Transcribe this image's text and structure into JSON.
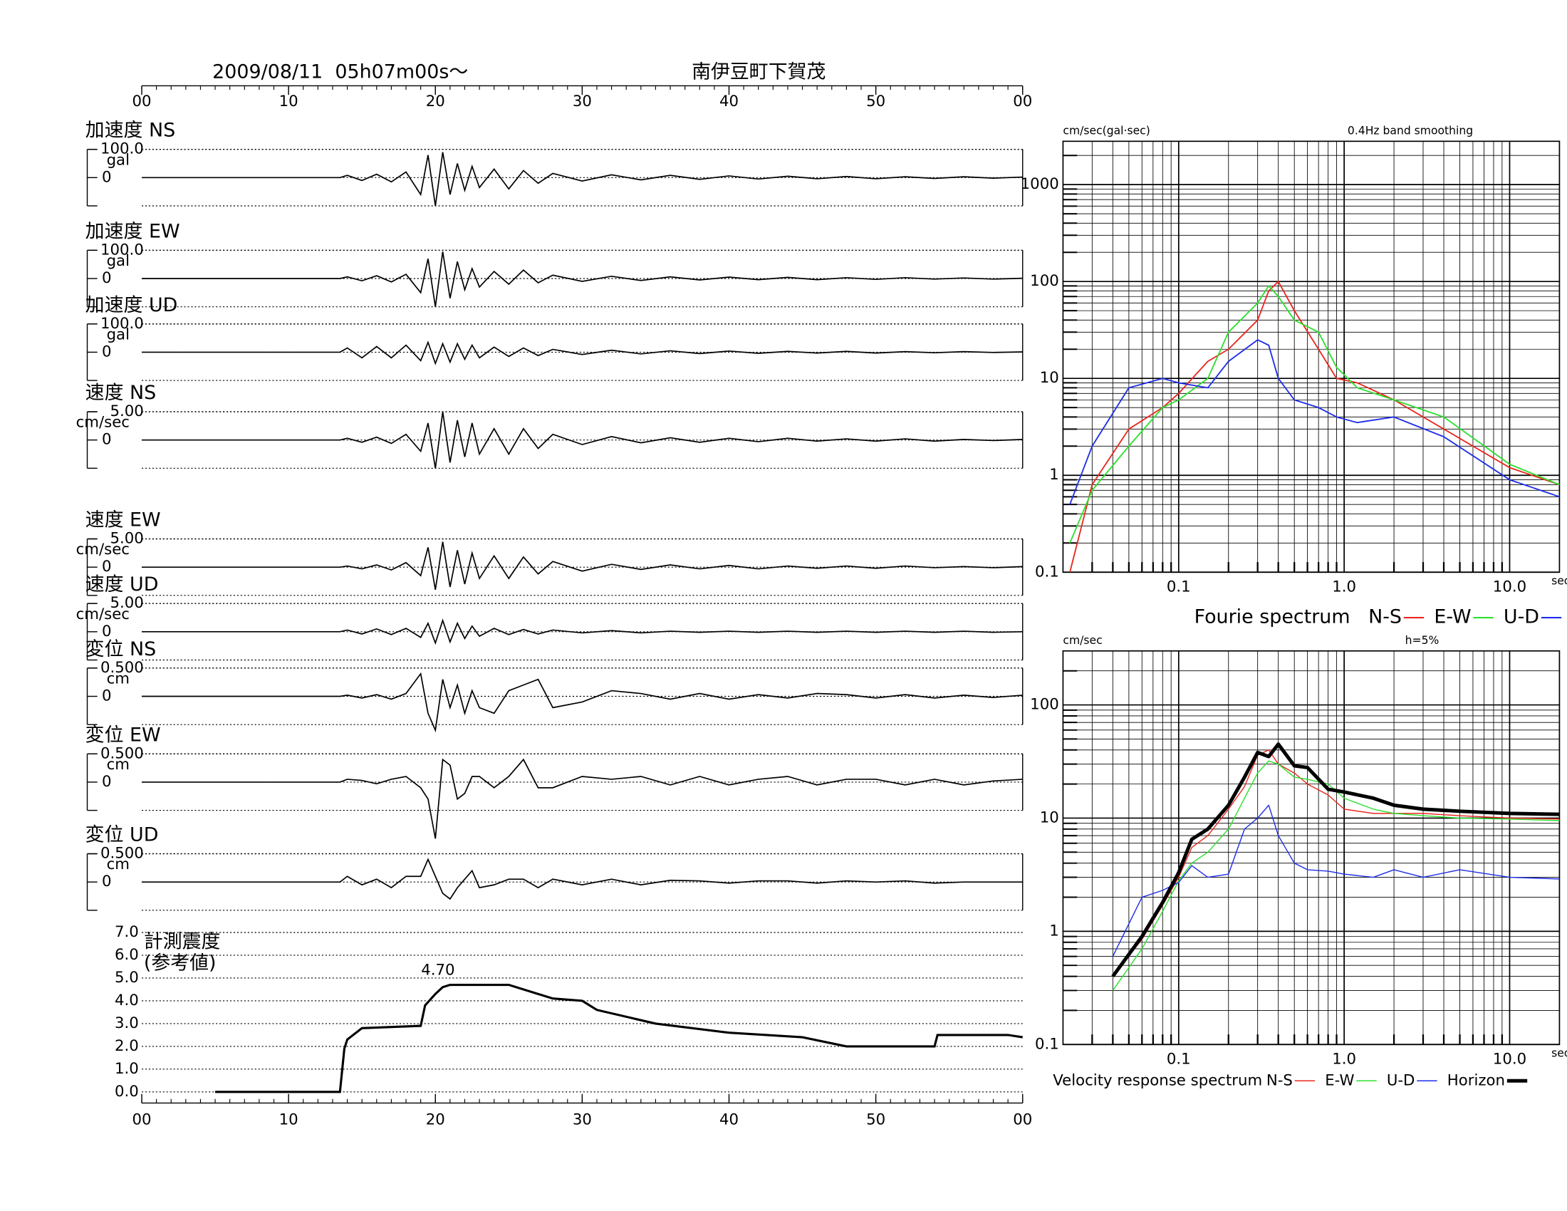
{
  "chart_data": [
    {
      "type": "seismogram",
      "title": "2009/08/11  05h07m00s〜",
      "subtitle": "南伊豆町下賀茂",
      "xlim": [
        0,
        60
      ],
      "xticks": [
        {
          "value": 0,
          "label": "00"
        },
        10,
        20,
        30,
        40,
        50,
        {
          "value": 60,
          "label": "00"
        }
      ],
      "x": [
        0,
        13.5,
        14,
        15,
        16,
        17,
        18,
        19,
        19.5,
        20,
        20.5,
        21,
        21.5,
        22,
        22.5,
        23,
        24,
        25,
        26,
        27,
        28,
        30,
        32,
        34,
        36,
        38,
        40,
        42,
        44,
        46,
        48,
        50,
        52,
        54,
        56,
        58,
        60
      ],
      "series": [
        {
          "name": "加速度 NS",
          "unit": "gal",
          "color": "#000000",
          "ylim": [
            -100,
            100
          ],
          "yticks": [
            {
              "value": 100,
              "label": "100.0"
            },
            0
          ],
          "values": [
            0,
            0,
            8,
            -10,
            12,
            -15,
            20,
            -60,
            80,
            -100,
            90,
            -60,
            50,
            -45,
            40,
            -35,
            30,
            -40,
            25,
            -20,
            15,
            -12,
            10,
            -8,
            8,
            -6,
            6,
            -5,
            5,
            -4,
            4,
            -4,
            3,
            -3,
            3,
            -2,
            2
          ]
        },
        {
          "name": "加速度 EW",
          "unit": "gal",
          "color": "#000000",
          "ylim": [
            -100,
            100
          ],
          "yticks": [
            {
              "value": 100,
              "label": "100.0"
            },
            0
          ],
          "values": [
            0,
            0,
            6,
            -8,
            10,
            -12,
            15,
            -50,
            70,
            -100,
            95,
            -70,
            60,
            -40,
            35,
            -30,
            25,
            -20,
            30,
            -15,
            12,
            -10,
            8,
            -7,
            6,
            -5,
            5,
            -4,
            4,
            -4,
            3,
            -3,
            3,
            -2,
            2,
            -2,
            1
          ]
        },
        {
          "name": "加速度 UD",
          "unit": "gal",
          "color": "#000000",
          "ylim": [
            -100,
            100
          ],
          "yticks": [
            {
              "value": 100,
              "label": "100.0"
            },
            0
          ],
          "values": [
            0,
            0,
            15,
            -20,
            20,
            -20,
            25,
            -30,
            35,
            -40,
            30,
            -35,
            30,
            -25,
            25,
            -20,
            18,
            -15,
            15,
            -12,
            10,
            -8,
            7,
            -6,
            5,
            -5,
            4,
            -4,
            3,
            -3,
            3,
            -3,
            2,
            -2,
            2,
            -1,
            1
          ]
        },
        {
          "name": "速度 NS",
          "unit": "cm/sec",
          "color": "#000000",
          "ylim": [
            -5,
            5
          ],
          "yticks": [
            {
              "value": 5,
              "label": "5.00"
            },
            0
          ],
          "values": [
            0,
            0,
            0.3,
            -0.4,
            0.5,
            -0.6,
            1,
            -2,
            3,
            -5,
            5,
            -4,
            3.5,
            -3,
            3,
            -2.5,
            2,
            -2.5,
            2,
            -1.5,
            1,
            -0.8,
            0.6,
            -0.5,
            0.4,
            -0.4,
            0.3,
            -0.3,
            0.3,
            -0.2,
            0.2,
            -0.2,
            0.2,
            -0.2,
            0.1,
            -0.1,
            0.1
          ]
        },
        {
          "name": "速度 EW",
          "unit": "cm/sec",
          "color": "#000000",
          "ylim": [
            -5,
            5
          ],
          "yticks": [
            {
              "value": 5,
              "label": "5.00"
            },
            0
          ],
          "values": [
            0,
            0,
            0.2,
            -0.3,
            0.4,
            -0.5,
            0.8,
            -1.5,
            3.5,
            -4,
            4.5,
            -3.5,
            3,
            -3,
            2.5,
            -2,
            2,
            -2,
            1.8,
            -1.2,
            1,
            -0.7,
            0.5,
            -0.4,
            0.4,
            -0.3,
            0.3,
            -0.3,
            0.2,
            -0.2,
            0.2,
            -0.2,
            0.2,
            -0.1,
            0.1,
            -0.1,
            0.1
          ]
        },
        {
          "name": "速度 UD",
          "unit": "cm/sec",
          "color": "#000000",
          "ylim": [
            -5,
            5
          ],
          "yticks": [
            {
              "value": 5,
              "label": "5.00"
            },
            0
          ],
          "values": [
            0,
            0,
            0.3,
            -0.4,
            0.5,
            -0.5,
            0.6,
            -1,
            1.5,
            -2,
            2,
            -1.8,
            1.5,
            -1.2,
            1,
            -0.8,
            0.6,
            -0.5,
            0.4,
            -0.4,
            0.3,
            -0.2,
            0.2,
            -0.2,
            0.1,
            -0.1,
            0.1,
            -0.1,
            0.1,
            -0.1,
            0.1,
            -0.1,
            0.1,
            -0.1,
            0.1,
            -0.1,
            0
          ]
        },
        {
          "name": "変位 NS",
          "unit": "cm",
          "color": "#000000",
          "ylim": [
            -0.5,
            0.5
          ],
          "yticks": [
            {
              "value": 0.5,
              "label": "0.500"
            },
            0
          ],
          "values": [
            0,
            0,
            0.02,
            -0.03,
            0.03,
            -0.05,
            0.05,
            0.4,
            -0.3,
            -0.6,
            0.3,
            -0.2,
            0.2,
            -0.3,
            0.1,
            -0.2,
            -0.3,
            0.1,
            0.2,
            0.3,
            -0.2,
            -0.1,
            0.1,
            0.05,
            -0.05,
            0.05,
            -0.05,
            0.03,
            -0.03,
            0.05,
            0.03,
            -0.03,
            0.03,
            -0.03,
            0.02,
            -0.02,
            0.02
          ]
        },
        {
          "name": "変位 EW",
          "unit": "cm",
          "color": "#000000",
          "ylim": [
            -0.5,
            0.5
          ],
          "yticks": [
            {
              "value": 0.5,
              "label": "0.500"
            },
            0
          ],
          "values": [
            0,
            0,
            0.05,
            0.03,
            -0.03,
            0.05,
            0.1,
            -0.1,
            -0.3,
            -1,
            0.4,
            0.3,
            -0.3,
            -0.2,
            0.1,
            0.1,
            -0.1,
            0.1,
            0.4,
            -0.1,
            -0.1,
            0.1,
            0.05,
            0.1,
            -0.05,
            0.1,
            -0.05,
            0.05,
            0.1,
            -0.05,
            0.05,
            0.05,
            -0.05,
            0.05,
            -0.05,
            0.02,
            0.05
          ]
        },
        {
          "name": "変位 UD",
          "unit": "cm",
          "color": "#000000",
          "ylim": [
            -0.5,
            0.5
          ],
          "yticks": [
            {
              "value": 0.5,
              "label": "0.500"
            },
            0
          ],
          "values": [
            0,
            0,
            0.1,
            -0.05,
            0.05,
            -0.1,
            0.1,
            0.1,
            0.4,
            0.1,
            -0.2,
            -0.3,
            -0.1,
            0.05,
            0.2,
            -0.1,
            -0.05,
            0.05,
            0.05,
            -0.1,
            0.05,
            -0.05,
            0.05,
            -0.05,
            0.03,
            0.02,
            -0.02,
            0.02,
            0.02,
            -0.02,
            0.02,
            0,
            0.02,
            -0.02,
            0,
            0,
            0
          ]
        }
      ]
    },
    {
      "type": "line",
      "title": "計測震度",
      "subtitle": "(参考値)",
      "color": "#000000",
      "xlim": [
        0,
        60
      ],
      "xticks": [
        {
          "value": 0,
          "label": "00"
        },
        10,
        20,
        30,
        40,
        50,
        {
          "value": 60,
          "label": "00"
        }
      ],
      "ylim": [
        0,
        7
      ],
      "yticks": [
        {
          "value": 0,
          "label": "0.0"
        },
        {
          "value": 1,
          "label": "1.0"
        },
        {
          "value": 2,
          "label": "2.0"
        },
        {
          "value": 3,
          "label": "3.0"
        },
        {
          "value": 4,
          "label": "4.0"
        },
        {
          "value": 5,
          "label": "5.0"
        },
        {
          "value": 6,
          "label": "6.0"
        },
        {
          "value": 7,
          "label": "7.0"
        }
      ],
      "grid": true,
      "x": [
        5,
        13.5,
        13.8,
        14,
        15,
        19,
        19.3,
        20,
        20.5,
        21,
        25,
        27,
        28,
        30,
        31,
        35,
        40,
        45,
        48,
        50,
        54,
        54.2,
        59,
        60
      ],
      "values": [
        0,
        0,
        1.9,
        2.3,
        2.8,
        2.9,
        3.8,
        4.3,
        4.6,
        4.7,
        4.7,
        4.3,
        4.1,
        4,
        3.6,
        3,
        2.6,
        2.4,
        2,
        2,
        2,
        2.5,
        2.5,
        2.4
      ],
      "annotation": {
        "x": 21,
        "value": 4.7,
        "label": "4.70"
      }
    },
    {
      "type": "spectrum",
      "title": "Fourie spectrum",
      "ylabel": "cm/sec(gal·sec)",
      "note": "0.4Hz band smoothing",
      "xlabel": "sec",
      "log_x": true,
      "log_y": true,
      "grid": true,
      "xlim": [
        0.02,
        20
      ],
      "xticks": [
        0.1,
        {
          "value": 1,
          "label": "1.0"
        },
        {
          "value": 10,
          "label": "10.0"
        }
      ],
      "ylim": [
        0.1,
        2800
      ],
      "yticks": [
        0.1,
        1,
        10,
        100,
        1000
      ],
      "x": [
        0.022,
        0.03,
        0.05,
        0.08,
        0.1,
        0.15,
        0.2,
        0.3,
        0.35,
        0.4,
        0.5,
        0.7,
        0.9,
        1.2,
        2,
        4,
        10,
        20
      ],
      "series": [
        {
          "name": "N-S",
          "color": "#e8281e",
          "values": [
            0.1,
            0.8,
            3,
            5,
            7,
            15,
            20,
            40,
            80,
            100,
            50,
            20,
            10,
            9,
            6,
            3,
            1.2,
            0.8
          ]
        },
        {
          "name": "E-W",
          "color": "#2ee02e",
          "values": [
            0.2,
            0.7,
            2,
            5,
            6,
            10,
            30,
            60,
            90,
            70,
            40,
            30,
            13,
            8,
            6,
            4,
            1.3,
            0.8
          ]
        },
        {
          "name": "U-D",
          "color": "#1e2ee8",
          "values": [
            0.5,
            2,
            8,
            10,
            9,
            8,
            15,
            25,
            22,
            10,
            6,
            5,
            4,
            3.5,
            4,
            2.5,
            0.9,
            0.6
          ]
        }
      ]
    },
    {
      "type": "spectrum",
      "title": "Velocity response spectrum",
      "ylabel": "cm/sec",
      "note": "h=5%",
      "xlabel": "sec",
      "log_x": true,
      "log_y": true,
      "grid": true,
      "xlim": [
        0.02,
        20
      ],
      "xticks": [
        0.1,
        {
          "value": 1,
          "label": "1.0"
        },
        {
          "value": 10,
          "label": "10.0"
        }
      ],
      "ylim": [
        0.1,
        300
      ],
      "yticks": [
        0.1,
        1,
        10,
        100
      ],
      "x": [
        0.04,
        0.06,
        0.08,
        0.1,
        0.12,
        0.15,
        0.2,
        0.25,
        0.3,
        0.35,
        0.4,
        0.5,
        0.6,
        0.8,
        1,
        1.5,
        2,
        3,
        5,
        10,
        20
      ],
      "series": [
        {
          "name": "N-S",
          "color": "#e8281e",
          "line_width": 1,
          "values": [
            0.4,
            0.85,
            1.7,
            3,
            5.5,
            7,
            12,
            19,
            36,
            40,
            30,
            25,
            20,
            16,
            12,
            11,
            11,
            11,
            10.5,
            10,
            9.8
          ]
        },
        {
          "name": "E-W",
          "color": "#2ee02e",
          "line_width": 1,
          "values": [
            0.3,
            0.7,
            1.5,
            2.8,
            4,
            5,
            8,
            15,
            25,
            32,
            30,
            23,
            22,
            20,
            15,
            12,
            11,
            10.5,
            10,
            9.8,
            9.5
          ]
        },
        {
          "name": "U-D",
          "color": "#1e2ee8",
          "line_width": 1,
          "values": [
            0.6,
            2,
            2.3,
            2.7,
            3.8,
            3,
            3.2,
            8,
            10,
            13,
            7,
            4,
            3.5,
            3.4,
            3.2,
            3,
            3.5,
            3,
            3.5,
            3,
            2.9
          ]
        },
        {
          "name": "Horizon",
          "color": "#000000",
          "line_width": 3.5,
          "values": [
            0.4,
            0.9,
            1.8,
            3.3,
            6.5,
            8,
            13,
            23,
            38,
            35,
            45,
            29,
            28,
            18,
            17,
            15,
            13,
            12,
            11.5,
            11,
            10.8
          ]
        }
      ]
    }
  ]
}
